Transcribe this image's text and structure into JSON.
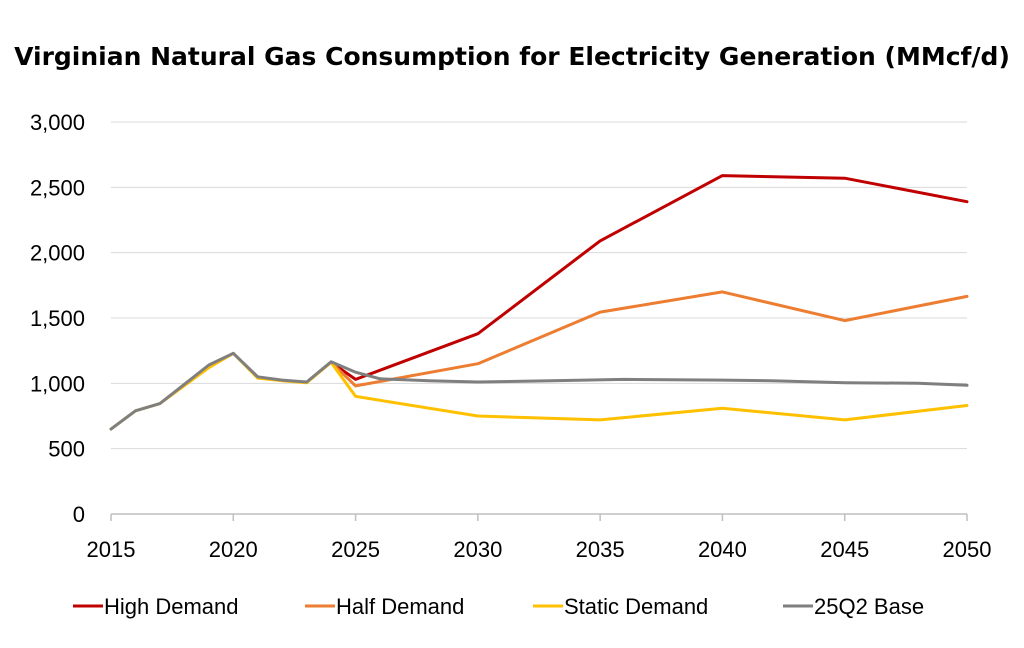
{
  "chart_data": {
    "type": "line",
    "title": "Virginian Natural Gas Consumption for Electricity Generation (MMcf/d)",
    "xlabel": "",
    "ylabel": "",
    "xlim": [
      2015,
      2050
    ],
    "ylim": [
      0,
      3000
    ],
    "x_ticks": [
      2015,
      2020,
      2025,
      2030,
      2035,
      2040,
      2045,
      2050
    ],
    "y_ticks": [
      0,
      500,
      1000,
      1500,
      2000,
      2500,
      3000
    ],
    "y_tick_labels": [
      "0",
      "500",
      "1,000",
      "1,500",
      "2,000",
      "2,500",
      "3,000"
    ],
    "grid": "horizontal",
    "legend_position": "bottom",
    "series": [
      {
        "name": "High Demand",
        "color": "#C00000",
        "points": [
          [
            2024,
            1160
          ],
          [
            2025,
            1030
          ],
          [
            2030,
            1380
          ],
          [
            2035,
            2090
          ],
          [
            2040,
            2590
          ],
          [
            2045,
            2570
          ],
          [
            2050,
            2390
          ]
        ]
      },
      {
        "name": "Half Demand",
        "color": "#ED7D31",
        "points": [
          [
            2024,
            1160
          ],
          [
            2025,
            980
          ],
          [
            2030,
            1150
          ],
          [
            2035,
            1545
          ],
          [
            2040,
            1700
          ],
          [
            2045,
            1480
          ],
          [
            2050,
            1665
          ]
        ]
      },
      {
        "name": "Static Demand",
        "color": "#FFC000",
        "points": [
          [
            2015,
            650
          ],
          [
            2016,
            790
          ],
          [
            2017,
            845
          ],
          [
            2019,
            1120
          ],
          [
            2020,
            1230
          ],
          [
            2021,
            1040
          ],
          [
            2022,
            1020
          ],
          [
            2023,
            1005
          ],
          [
            2024,
            1160
          ],
          [
            2025,
            900
          ],
          [
            2030,
            750
          ],
          [
            2035,
            720
          ],
          [
            2040,
            810
          ],
          [
            2045,
            720
          ],
          [
            2050,
            830
          ]
        ]
      },
      {
        "name": "25Q2 Base",
        "color": "#7F7F7F",
        "points": [
          [
            2015,
            650
          ],
          [
            2016,
            790
          ],
          [
            2017,
            845
          ],
          [
            2019,
            1140
          ],
          [
            2020,
            1230
          ],
          [
            2021,
            1050
          ],
          [
            2022,
            1025
          ],
          [
            2023,
            1010
          ],
          [
            2024,
            1165
          ],
          [
            2025,
            1085
          ],
          [
            2026,
            1035
          ],
          [
            2028,
            1020
          ],
          [
            2030,
            1010
          ],
          [
            2033,
            1020
          ],
          [
            2036,
            1030
          ],
          [
            2040,
            1025
          ],
          [
            2042,
            1020
          ],
          [
            2045,
            1005
          ],
          [
            2048,
            1000
          ],
          [
            2050,
            985
          ]
        ]
      }
    ]
  }
}
